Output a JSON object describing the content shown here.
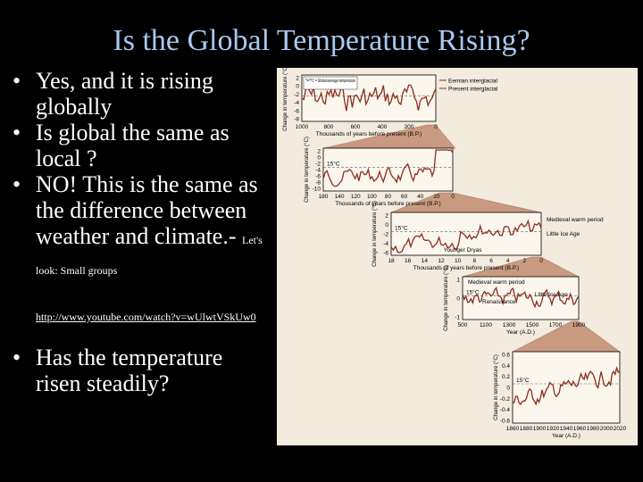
{
  "slide": {
    "title": "Is the Global Temperature Rising?",
    "bullets": [
      {
        "text": "Yes, and it is rising globally"
      },
      {
        "text": "Is global the same as local ?"
      },
      {
        "text": "NO! This is the same as the difference between weather and climate.-",
        "small": "Let's look: Small groups"
      }
    ],
    "link": "http://www.youtube.com/watch?v=wUlwtVSkUw0",
    "bullet_last": "Has the temperature risen steadily?",
    "bullet_symbol": "•"
  },
  "figure": {
    "colors": {
      "background": "#f3ebdd",
      "line": "#8b2f1f",
      "zoom": "#c99a80",
      "frame": "#000000"
    },
    "panels": [
      {
        "ylabel": "Change in temperature (°C)",
        "xlabel": "Thousands of years before present (B.P.)",
        "x_ticks": [
          "1000",
          "800",
          "600",
          "400",
          "200",
          "0"
        ],
        "y_ticks": [
          "2",
          "0",
          "-2",
          "-4",
          "-6",
          "-8"
        ],
        "inset": "T=?°C = Global average temperature",
        "legend": [
          "Eemian interglacial",
          "Present interglacial"
        ]
      },
      {
        "ylabel": "Change in temperature (°C)",
        "xlabel": "Thousands of years before present (B.P.)",
        "x_ticks": [
          "180",
          "140",
          "120",
          "100",
          "80",
          "60",
          "40",
          "20",
          "0"
        ],
        "y_ticks": [
          "2",
          "0",
          "-2",
          "-4",
          "-6",
          "-8",
          "-10"
        ],
        "ref_label": "15°C"
      },
      {
        "ylabel": "Change in temperature (°C)",
        "xlabel": "Thousands of years before present (B.P.)",
        "x_ticks": [
          "18",
          "16",
          "14",
          "12",
          "10",
          "8",
          "6",
          "4",
          "2",
          "0"
        ],
        "y_ticks": [
          "2",
          "0",
          "-2",
          "-4",
          "-6"
        ],
        "ref_label": "15°C",
        "annotations": [
          "Medieval warm period",
          "Little Ice Age",
          "Younger Dryas"
        ]
      },
      {
        "ylabel": "Change in temperature (°C)",
        "xlabel": "Year (A.D.)",
        "x_ticks": [
          "500",
          "1100",
          "1300",
          "1500",
          "1700",
          "1900"
        ],
        "y_ticks": [
          "1",
          "0",
          "-1"
        ],
        "ref_label": "15°C",
        "annotations": [
          "Medieval warm period",
          "Renaissance",
          "Little Ice Age"
        ]
      },
      {
        "ylabel": "Change in temperature (°C)",
        "xlabel": "Year (A.D.)",
        "x_ticks": [
          "1860",
          "1880",
          "1900",
          "1920",
          "1940",
          "1960",
          "1980",
          "2000",
          "2020"
        ],
        "y_ticks": [
          "0.6",
          "0.4",
          "0.2",
          "0",
          "-0.2",
          "-0.4",
          "-0.6"
        ],
        "ref_label": "15°C"
      }
    ]
  }
}
